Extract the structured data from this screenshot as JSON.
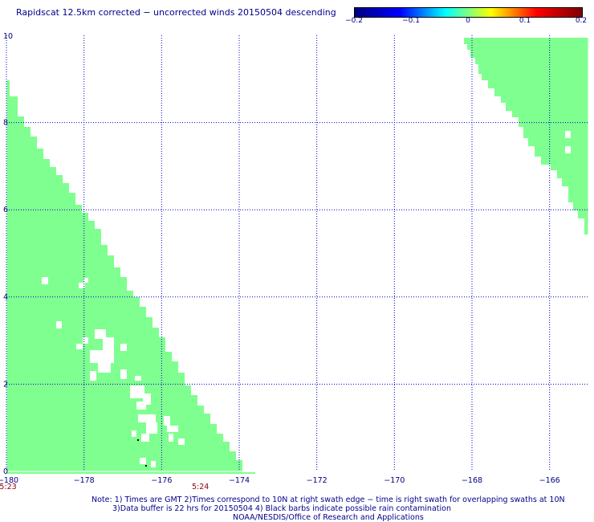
{
  "title": "Rapidscat 12.5km corrected − uncorrected winds 20150504 descending",
  "colorbar": {
    "ticks": [
      "−0.2",
      "−0.1",
      "0",
      "0.1",
      "0.2"
    ],
    "values": [
      -0.2,
      -0.1,
      0,
      0.1,
      0.2
    ],
    "colors": [
      "#00007f",
      "#0000ff",
      "#00ffff",
      "#ffff00",
      "#ff0000",
      "#7f0000"
    ]
  },
  "axes": {
    "x_ticks": [
      "−180",
      "−178",
      "−176",
      "−174",
      "−172",
      "−170",
      "−168",
      "−166"
    ],
    "x_values": [
      -180,
      -178,
      -176,
      -174,
      -172,
      -170,
      -168,
      -166
    ],
    "y_ticks": [
      "0",
      "2",
      "4",
      "6",
      "8",
      "10"
    ],
    "y_values": [
      0,
      2,
      4,
      6,
      8,
      10
    ],
    "xlim": [
      -180,
      -165
    ],
    "ylim": [
      0,
      10
    ]
  },
  "swath_times": [
    {
      "label": "5:23",
      "lon": -180
    },
    {
      "label": "5:24",
      "lon": -175
    }
  ],
  "swath_color": "#7fff8f",
  "notes": [
    "Note: 1) Times are GMT 2)Times correspond to 10N at right swath edge − time is right swath for overlapping swaths at 10N",
    "3)Data buffer is 22 hrs for 20150504 4) Black barbs indicate possible rain contamination",
    "NOAA/NESDIS/Office of Research and Applications"
  ]
}
